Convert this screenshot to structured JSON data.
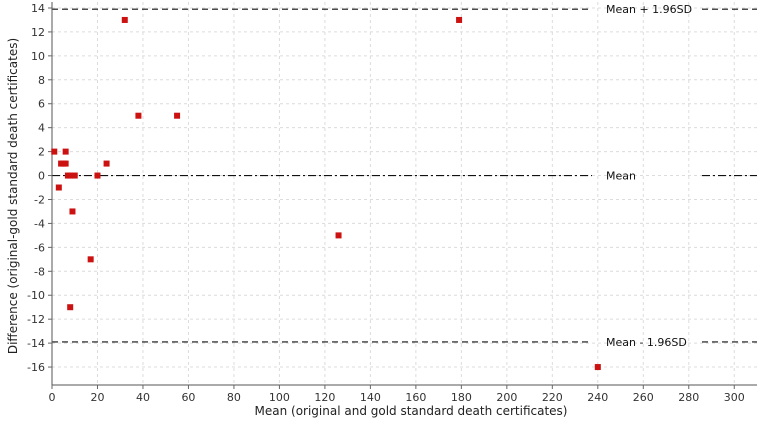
{
  "chart_data": {
    "type": "scatter",
    "xlabel": "Mean (original and gold standard death certificates)",
    "ylabel": "Difference (original-gold standard death certificates)",
    "xlim": [
      0,
      310
    ],
    "ylim": [
      -17.5,
      14.5
    ],
    "x_ticks": [
      0,
      20,
      40,
      60,
      80,
      100,
      120,
      140,
      160,
      180,
      200,
      220,
      240,
      260,
      280,
      300
    ],
    "y_ticks": [
      -16,
      -14,
      -12,
      -10,
      -8,
      -6,
      -4,
      -2,
      0,
      2,
      4,
      6,
      8,
      10,
      12,
      14
    ],
    "grid": true,
    "point_color": "#cc1111",
    "points": [
      {
        "x": 1,
        "y": 2
      },
      {
        "x": 3,
        "y": -1
      },
      {
        "x": 4,
        "y": 1
      },
      {
        "x": 5,
        "y": 1
      },
      {
        "x": 6,
        "y": 1
      },
      {
        "x": 6,
        "y": 2
      },
      {
        "x": 7,
        "y": 0
      },
      {
        "x": 8,
        "y": -11
      },
      {
        "x": 8,
        "y": 0
      },
      {
        "x": 9,
        "y": -3
      },
      {
        "x": 10,
        "y": 0
      },
      {
        "x": 17,
        "y": -7
      },
      {
        "x": 20,
        "y": 0
      },
      {
        "x": 24,
        "y": 1
      },
      {
        "x": 32,
        "y": 13
      },
      {
        "x": 38,
        "y": 5
      },
      {
        "x": 55,
        "y": 5
      },
      {
        "x": 126,
        "y": -5
      },
      {
        "x": 179,
        "y": 13
      },
      {
        "x": 240,
        "y": -16
      }
    ],
    "reference_lines": [
      {
        "label": "Mean + 1.96SD",
        "y": 13.9,
        "style": "dashed"
      },
      {
        "label": "Mean",
        "y": 0,
        "style": "dashdot"
      },
      {
        "label": "Mean - 1.96SD",
        "y": -13.9,
        "style": "dashed"
      }
    ]
  }
}
